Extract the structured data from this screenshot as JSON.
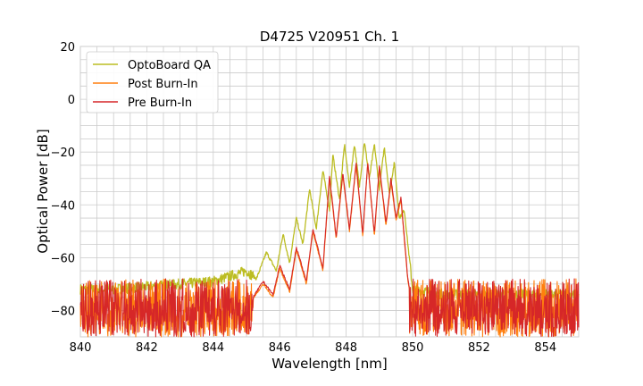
{
  "chart_data": {
    "type": "line",
    "title": "D4725 V20951 Ch. 1",
    "xlabel": "Wavelength [nm]",
    "ylabel": "Optical Power [dB]",
    "xlim": [
      840,
      855
    ],
    "ylim": [
      -90,
      20
    ],
    "xticks": [
      840,
      842,
      844,
      846,
      848,
      850,
      852,
      854
    ],
    "yticks": [
      20,
      0,
      -20,
      -40,
      -60,
      -80
    ],
    "grid": true,
    "legend_position": "top-left",
    "series": [
      {
        "name": "OptoBoard QA",
        "color": "#bcbd22",
        "x": [
          840,
          841,
          842,
          843,
          844,
          844.5,
          845,
          845.3,
          845.6,
          845.9,
          846.1,
          846.3,
          846.5,
          846.7,
          846.9,
          847.1,
          847.3,
          847.5,
          847.6,
          847.8,
          847.95,
          848.1,
          848.25,
          848.4,
          848.55,
          848.7,
          848.85,
          849.0,
          849.15,
          849.3,
          849.45,
          849.6,
          849.75,
          850.0,
          851,
          852,
          853,
          854,
          855
        ],
        "y": [
          -72,
          -72,
          -71,
          -70,
          -69,
          -67,
          -65,
          -68,
          -58,
          -65,
          -51,
          -62,
          -45,
          -55,
          -34,
          -49,
          -27,
          -42,
          -21,
          -38,
          -17,
          -33,
          -17,
          -33,
          -16,
          -30,
          -17,
          -34,
          -18,
          -36,
          -24,
          -45,
          -42,
          -72,
          -74,
          -74,
          -74,
          -74,
          -74
        ]
      },
      {
        "name": "Post Burn-In",
        "color": "#ff7f0e",
        "x": [
          840,
          841,
          842,
          843,
          844,
          845,
          845.5,
          845.8,
          846.0,
          846.3,
          846.5,
          846.8,
          847.0,
          847.3,
          847.5,
          847.7,
          847.9,
          848.1,
          848.3,
          848.5,
          848.65,
          848.85,
          849.0,
          849.2,
          849.35,
          849.5,
          849.65,
          849.85,
          850.0,
          851,
          852,
          853,
          854,
          855
        ],
        "y": [
          -80,
          -80,
          -80,
          -80,
          -80,
          -79,
          -70,
          -75,
          -64,
          -73,
          -57,
          -70,
          -50,
          -65,
          -30,
          -53,
          -29,
          -50,
          -25,
          -52,
          -24,
          -52,
          -26,
          -48,
          -31,
          -46,
          -38,
          -68,
          -80,
          -80,
          -80,
          -80,
          -80,
          -80
        ]
      },
      {
        "name": "Pre Burn-In",
        "color": "#d62728",
        "x": [
          840,
          841,
          842,
          843,
          844,
          845,
          845.5,
          845.8,
          846.0,
          846.3,
          846.5,
          846.8,
          847.0,
          847.3,
          847.5,
          847.7,
          847.9,
          848.1,
          848.3,
          848.5,
          848.65,
          848.85,
          849.0,
          849.2,
          849.35,
          849.5,
          849.65,
          849.85,
          850.0,
          851,
          852,
          853,
          854,
          855
        ],
        "y": [
          -80,
          -80,
          -80,
          -80,
          -80,
          -79,
          -69,
          -74,
          -63,
          -72,
          -56,
          -69,
          -49,
          -64,
          -29,
          -52,
          -28,
          -49,
          -24,
          -51,
          -24,
          -51,
          -25,
          -47,
          -30,
          -45,
          -37,
          -67,
          -80,
          -80,
          -80,
          -80,
          -80,
          -80
        ]
      }
    ]
  }
}
